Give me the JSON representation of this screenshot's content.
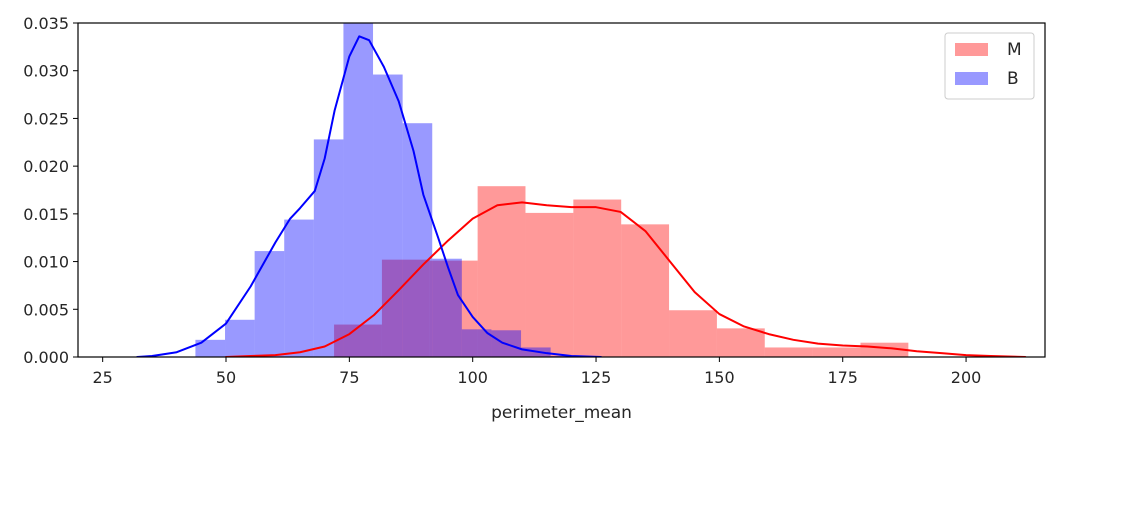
{
  "chart_data": {
    "type": "bar",
    "xlabel": "perimeter_mean",
    "ylabel": "",
    "xlim": [
      20,
      216
    ],
    "ylim": [
      0,
      0.035
    ],
    "xticks": [
      25,
      50,
      75,
      100,
      125,
      150,
      175,
      200
    ],
    "yticks": [
      0.0,
      0.005,
      0.01,
      0.015,
      0.02,
      0.025,
      0.03,
      0.035
    ],
    "xtick_labels": [
      "25",
      "50",
      "75",
      "100",
      "125",
      "150",
      "175",
      "200"
    ],
    "ytick_labels": [
      "0.000",
      "0.005",
      "0.010",
      "0.015",
      "0.020",
      "0.025",
      "0.030",
      "0.035"
    ],
    "grid": false,
    "legend_position": "top-right",
    "series": [
      {
        "name": "M",
        "color": "#ff0000",
        "hist_alpha": 0.4,
        "bin_width": 9.7,
        "hist": [
          {
            "x0": 71.9,
            "value": 0.0034
          },
          {
            "x0": 81.6,
            "value": 0.0102
          },
          {
            "x0": 91.3,
            "value": 0.0101
          },
          {
            "x0": 101.0,
            "value": 0.0179
          },
          {
            "x0": 110.7,
            "value": 0.0151
          },
          {
            "x0": 120.4,
            "value": 0.0165
          },
          {
            "x0": 130.1,
            "value": 0.0139
          },
          {
            "x0": 139.8,
            "value": 0.0049
          },
          {
            "x0": 149.5,
            "value": 0.003
          },
          {
            "x0": 159.2,
            "value": 0.001
          },
          {
            "x0": 168.9,
            "value": 0.001
          },
          {
            "x0": 178.6,
            "value": 0.0015
          },
          {
            "x0": 188.3,
            "value": 0.0
          }
        ],
        "kde": [
          [
            50,
            0.0
          ],
          [
            55,
            0.0001
          ],
          [
            60,
            0.0002
          ],
          [
            65,
            0.0005
          ],
          [
            70,
            0.0011
          ],
          [
            75,
            0.0024
          ],
          [
            80,
            0.0044
          ],
          [
            85,
            0.007
          ],
          [
            90,
            0.0097
          ],
          [
            95,
            0.0122
          ],
          [
            100,
            0.0145
          ],
          [
            105,
            0.0159
          ],
          [
            110,
            0.0162
          ],
          [
            115,
            0.0159
          ],
          [
            120,
            0.0157
          ],
          [
            125,
            0.0157
          ],
          [
            130,
            0.0152
          ],
          [
            135,
            0.0132
          ],
          [
            140,
            0.01
          ],
          [
            145,
            0.0068
          ],
          [
            150,
            0.0045
          ],
          [
            155,
            0.0032
          ],
          [
            160,
            0.0024
          ],
          [
            165,
            0.0018
          ],
          [
            170,
            0.0014
          ],
          [
            175,
            0.0012
          ],
          [
            180,
            0.0011
          ],
          [
            185,
            0.0009
          ],
          [
            190,
            0.0006
          ],
          [
            195,
            0.0004
          ],
          [
            200,
            0.0002
          ],
          [
            205,
            0.0001
          ],
          [
            212,
            0.0
          ]
        ]
      },
      {
        "name": "B",
        "color": "#0000ff",
        "hist_alpha": 0.4,
        "bin_width": 6.0,
        "hist": [
          {
            "x0": 43.8,
            "value": 0.0018
          },
          {
            "x0": 49.8,
            "value": 0.0039
          },
          {
            "x0": 55.8,
            "value": 0.0111
          },
          {
            "x0": 61.8,
            "value": 0.0144
          },
          {
            "x0": 67.8,
            "value": 0.0228
          },
          {
            "x0": 73.8,
            "value": 0.0351
          },
          {
            "x0": 79.8,
            "value": 0.0296
          },
          {
            "x0": 85.8,
            "value": 0.0245
          },
          {
            "x0": 91.8,
            "value": 0.0103
          },
          {
            "x0": 97.8,
            "value": 0.0029
          },
          {
            "x0": 103.8,
            "value": 0.0028
          },
          {
            "x0": 109.8,
            "value": 0.001
          },
          {
            "x0": 115.8,
            "value": 0.0001
          }
        ],
        "kde": [
          [
            32,
            0.0
          ],
          [
            35,
            0.0001
          ],
          [
            40,
            0.0005
          ],
          [
            45,
            0.0015
          ],
          [
            50,
            0.0035
          ],
          [
            55,
            0.0074
          ],
          [
            60,
            0.012
          ],
          [
            63,
            0.0145
          ],
          [
            65,
            0.0156
          ],
          [
            68,
            0.0174
          ],
          [
            70,
            0.0208
          ],
          [
            72,
            0.0258
          ],
          [
            75,
            0.0315
          ],
          [
            77,
            0.0336
          ],
          [
            79,
            0.0332
          ],
          [
            82,
            0.0304
          ],
          [
            85,
            0.0268
          ],
          [
            88,
            0.0216
          ],
          [
            90,
            0.017
          ],
          [
            93,
            0.0125
          ],
          [
            95,
            0.0094
          ],
          [
            97,
            0.0065
          ],
          [
            100,
            0.0042
          ],
          [
            103,
            0.0025
          ],
          [
            106,
            0.0015
          ],
          [
            110,
            0.0008
          ],
          [
            115,
            0.0004
          ],
          [
            120,
            0.0001
          ],
          [
            126,
            0.0
          ]
        ]
      }
    ]
  }
}
